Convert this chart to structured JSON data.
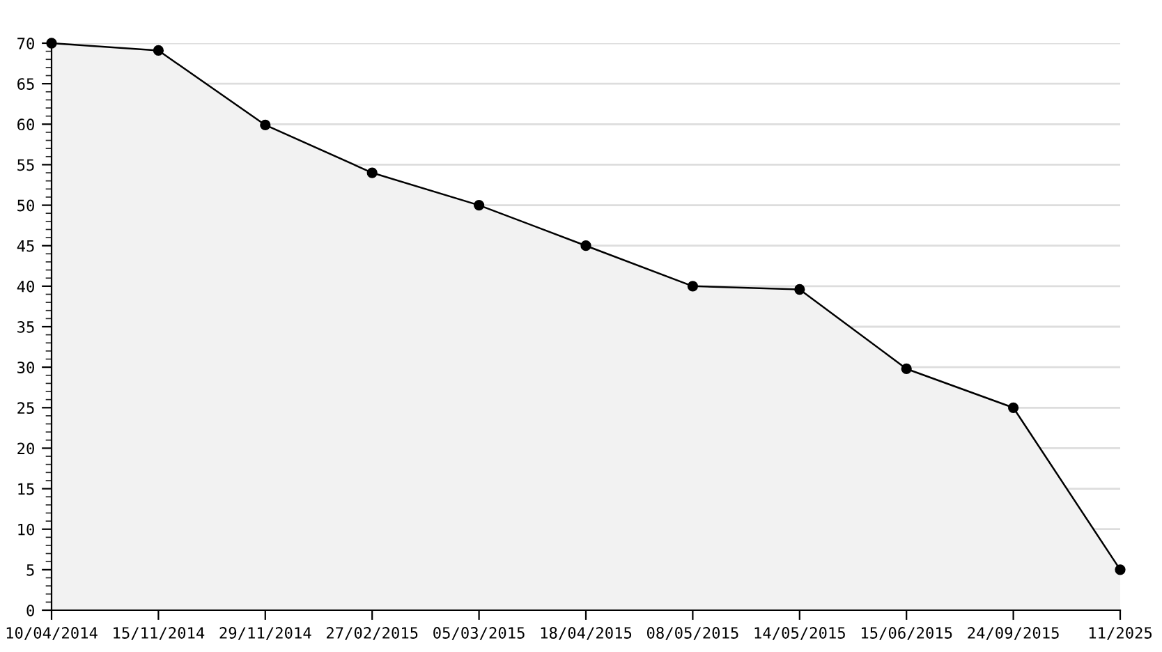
{
  "chart_data": {
    "type": "area",
    "categories": [
      "10/04/2014",
      "15/11/2014",
      "29/11/2014",
      "27/02/2015",
      "05/03/2015",
      "18/04/2015",
      "08/05/2015",
      "14/05/2015",
      "15/06/2015",
      "24/09/2015",
      "11/2025"
    ],
    "series": [
      {
        "color": "#000000",
        "values": [
          70,
          69.1,
          59.9,
          54,
          50,
          45,
          40,
          39.6,
          29.8,
          25,
          5
        ]
      }
    ],
    "ylim": [
      0,
      70
    ],
    "yticks": [
      0,
      5,
      10,
      15,
      20,
      25,
      30,
      35,
      40,
      45,
      50,
      55,
      60,
      65,
      70
    ],
    "grid": "y",
    "marker": "circle",
    "line_style": "solid",
    "legend": false
  }
}
